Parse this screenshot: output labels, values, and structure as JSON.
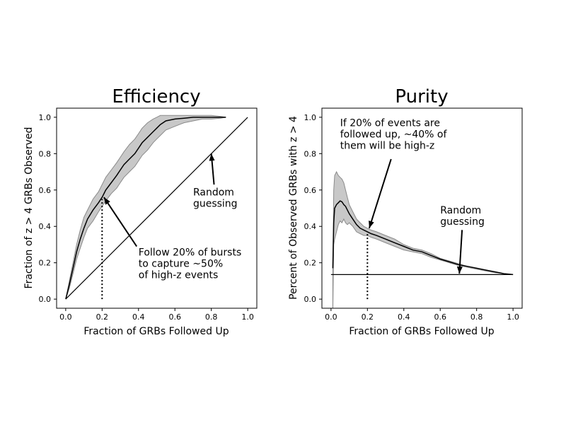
{
  "chart_data": [
    {
      "type": "line",
      "title": "Efficiency",
      "xlabel": "Fraction of GRBs Followed Up",
      "ylabel": "Fraction of z > 4 GRBs Observed",
      "xlim": [
        -0.05,
        1.05
      ],
      "ylim": [
        -0.05,
        1.05
      ],
      "xticks": [
        "0.0",
        "0.2",
        "0.4",
        "0.6",
        "0.8",
        "1.0"
      ],
      "yticks": [
        "0.0",
        "0.2",
        "0.4",
        "0.6",
        "0.8",
        "1.0"
      ],
      "grid": false,
      "series": [
        {
          "role": "mean curve with shaded band",
          "x": [
            0.0,
            0.02,
            0.04,
            0.06,
            0.08,
            0.1,
            0.12,
            0.15,
            0.18,
            0.2,
            0.22,
            0.25,
            0.28,
            0.3,
            0.32,
            0.35,
            0.38,
            0.4,
            0.42,
            0.45,
            0.48,
            0.5,
            0.52,
            0.55,
            0.6,
            0.65,
            0.7,
            0.75,
            0.8,
            0.85,
            0.88
          ],
          "y": [
            0.0,
            0.08,
            0.17,
            0.26,
            0.33,
            0.39,
            0.44,
            0.49,
            0.53,
            0.56,
            0.6,
            0.64,
            0.68,
            0.71,
            0.74,
            0.77,
            0.8,
            0.83,
            0.86,
            0.89,
            0.92,
            0.94,
            0.96,
            0.98,
            0.99,
            0.995,
            1.0,
            1.0,
            1.0,
            1.0,
            1.0
          ],
          "upper": [
            0.0,
            0.1,
            0.2,
            0.3,
            0.38,
            0.45,
            0.49,
            0.55,
            0.59,
            0.63,
            0.67,
            0.71,
            0.75,
            0.78,
            0.81,
            0.85,
            0.88,
            0.91,
            0.94,
            0.97,
            0.99,
            1.0,
            1.01,
            1.01,
            1.01,
            1.01,
            1.01,
            1.01,
            1.01,
            1.005,
            1.0
          ],
          "lower": [
            0.0,
            0.06,
            0.14,
            0.22,
            0.28,
            0.34,
            0.39,
            0.43,
            0.48,
            0.51,
            0.54,
            0.58,
            0.61,
            0.64,
            0.67,
            0.7,
            0.73,
            0.76,
            0.79,
            0.82,
            0.86,
            0.88,
            0.9,
            0.93,
            0.95,
            0.97,
            0.98,
            0.99,
            0.99,
            0.995,
            1.0
          ]
        },
        {
          "role": "random guessing line",
          "x": [
            0.0,
            1.0
          ],
          "y": [
            0.0,
            1.0
          ]
        }
      ],
      "vline": {
        "x": 0.2,
        "ymin": 0.0,
        "ymax": 0.55
      },
      "annotations": [
        {
          "lines": [
            "Random",
            "guessing"
          ],
          "text_xy": [
            0.7,
            0.57
          ],
          "arrow_to": [
            0.8,
            0.8
          ],
          "arrow_from": [
            0.815,
            0.63
          ]
        },
        {
          "lines": [
            "Follow 20% of bursts",
            "to capture ~50%",
            "of high-z events"
          ],
          "text_xy": [
            0.4,
            0.24
          ],
          "arrow_to": [
            0.21,
            0.56
          ],
          "arrow_from": [
            0.39,
            0.29
          ]
        }
      ]
    },
    {
      "type": "line",
      "title": "Purity",
      "xlabel": "Fraction of GRBs Followed Up",
      "ylabel": "Percent of Observed GRBs with z > 4",
      "xlim": [
        -0.05,
        1.05
      ],
      "ylim": [
        -0.05,
        1.05
      ],
      "xticks": [
        "0.0",
        "0.2",
        "0.4",
        "0.6",
        "0.8",
        "1.0"
      ],
      "yticks": [
        "0.0",
        "0.2",
        "0.4",
        "0.6",
        "0.8",
        "1.0"
      ],
      "grid": false,
      "series": [
        {
          "role": "mean curve with shaded band",
          "x": [
            0.01,
            0.015,
            0.02,
            0.03,
            0.04,
            0.05,
            0.06,
            0.07,
            0.08,
            0.09,
            0.1,
            0.12,
            0.14,
            0.16,
            0.18,
            0.2,
            0.22,
            0.25,
            0.3,
            0.35,
            0.4,
            0.45,
            0.5,
            0.55,
            0.6,
            0.65,
            0.7,
            0.75,
            0.8,
            0.85,
            0.9,
            0.95,
            1.0
          ],
          "y": [
            0.17,
            0.42,
            0.5,
            0.52,
            0.53,
            0.54,
            0.535,
            0.52,
            0.51,
            0.49,
            0.47,
            0.44,
            0.41,
            0.39,
            0.38,
            0.37,
            0.36,
            0.35,
            0.33,
            0.31,
            0.29,
            0.27,
            0.26,
            0.24,
            0.22,
            0.205,
            0.19,
            0.18,
            0.17,
            0.16,
            0.15,
            0.14,
            0.135
          ],
          "upper": [
            0.17,
            0.6,
            0.68,
            0.7,
            0.68,
            0.67,
            0.66,
            0.64,
            0.6,
            0.56,
            0.52,
            0.48,
            0.44,
            0.42,
            0.4,
            0.39,
            0.38,
            0.37,
            0.35,
            0.33,
            0.3,
            0.28,
            0.27,
            0.25,
            0.225,
            0.21,
            0.195,
            0.18,
            0.17,
            0.16,
            0.15,
            0.14,
            0.135
          ],
          "lower": [
            -0.08,
            0.3,
            0.33,
            0.37,
            0.41,
            0.43,
            0.42,
            0.44,
            0.42,
            0.41,
            0.42,
            0.4,
            0.37,
            0.36,
            0.35,
            0.35,
            0.34,
            0.33,
            0.31,
            0.29,
            0.27,
            0.26,
            0.25,
            0.23,
            0.215,
            0.2,
            0.185,
            0.175,
            0.165,
            0.155,
            0.145,
            0.14,
            0.135
          ]
        },
        {
          "role": "random guessing line",
          "x": [
            0.0,
            1.0
          ],
          "y": [
            0.135,
            0.135
          ]
        }
      ],
      "vline": {
        "x": 0.2,
        "ymin": 0.0,
        "ymax": 0.37
      },
      "annotations": [
        {
          "lines": [
            "If 20% of events are",
            "followed up, ~40% of",
            "them will be high-z"
          ],
          "text_xy": [
            0.05,
            0.95
          ],
          "arrow_to": [
            0.21,
            0.39
          ],
          "arrow_from": [
            0.33,
            0.77
          ]
        },
        {
          "lines": [
            "Random",
            "guessing"
          ],
          "text_xy": [
            0.6,
            0.47
          ],
          "arrow_to": [
            0.705,
            0.14
          ],
          "arrow_from": [
            0.72,
            0.38
          ]
        }
      ]
    }
  ]
}
